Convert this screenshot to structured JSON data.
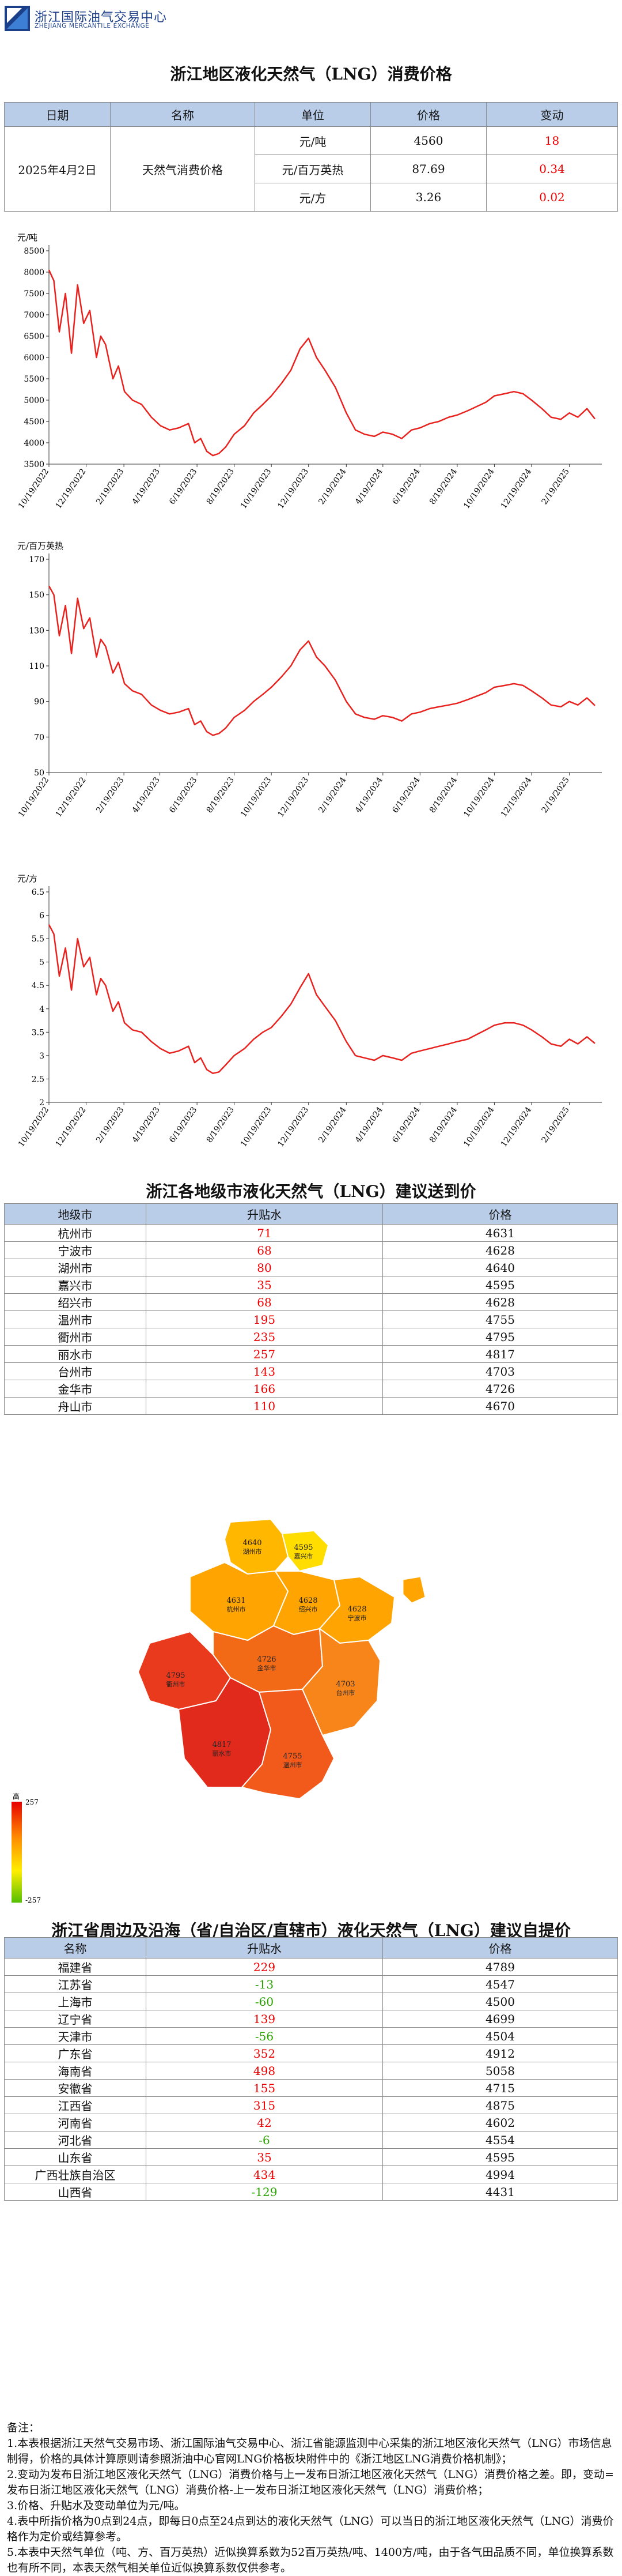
{
  "header": {
    "org_name_cn": "浙江国际油气交易中心",
    "org_name_en": "ZHEJIANG MERCANTILE EXCHANGE"
  },
  "price_section": {
    "title": "浙江地区液化天然气（LNG）消费价格",
    "columns": [
      "日期",
      "名称",
      "单位",
      "价格",
      "变动"
    ],
    "date": "2025年4月2日",
    "name": "天然气消费价格",
    "rows": [
      {
        "unit": "元/吨",
        "price": "4560",
        "change": "18"
      },
      {
        "unit": "元/百万英热",
        "price": "87.69",
        "change": "0.34"
      },
      {
        "unit": "元/方",
        "price": "3.26",
        "change": "0.02"
      }
    ]
  },
  "chart_data": [
    {
      "type": "line",
      "ylabel": "元/吨",
      "ylim": [
        3500,
        8500
      ],
      "yticks": [
        "3500",
        "4000",
        "4500",
        "5000",
        "5500",
        "6000",
        "6500",
        "7000",
        "7500",
        "8000",
        "8500"
      ],
      "x_tick_labels": [
        "10/19/2022",
        "12/19/2022",
        "2/19/2023",
        "4/19/2023",
        "6/19/2023",
        "8/19/2023",
        "10/19/2023",
        "12/19/2023",
        "2/19/2024",
        "4/19/2024",
        "6/19/2024",
        "8/19/2024",
        "10/19/2024",
        "12/19/2024",
        "2/19/2025"
      ],
      "x": [
        "2022-10-19",
        "2022-10-27",
        "2022-11-05",
        "2022-11-15",
        "2022-11-25",
        "2022-12-05",
        "2022-12-15",
        "2022-12-25",
        "2023-01-05",
        "2023-01-12",
        "2023-01-20",
        "2023-02-01",
        "2023-02-10",
        "2023-02-20",
        "2023-03-05",
        "2023-03-20",
        "2023-04-05",
        "2023-04-20",
        "2023-05-05",
        "2023-05-20",
        "2023-06-05",
        "2023-06-15",
        "2023-06-25",
        "2023-07-05",
        "2023-07-15",
        "2023-07-25",
        "2023-08-05",
        "2023-08-19",
        "2023-09-05",
        "2023-09-20",
        "2023-10-05",
        "2023-10-19",
        "2023-11-05",
        "2023-11-20",
        "2023-12-05",
        "2023-12-19",
        "2024-01-01",
        "2024-01-15",
        "2024-02-01",
        "2024-02-19",
        "2024-03-05",
        "2024-03-20",
        "2024-04-05",
        "2024-04-19",
        "2024-05-05",
        "2024-05-20",
        "2024-06-05",
        "2024-06-19",
        "2024-07-05",
        "2024-07-20",
        "2024-08-05",
        "2024-08-19",
        "2024-09-05",
        "2024-09-20",
        "2024-10-05",
        "2024-10-19",
        "2024-11-05",
        "2024-11-20",
        "2024-12-05",
        "2024-12-19",
        "2025-01-05",
        "2025-01-20",
        "2025-02-05",
        "2025-02-19",
        "2025-03-05",
        "2025-03-20",
        "2025-04-02"
      ],
      "values": [
        8050,
        7800,
        6600,
        7500,
        6100,
        7700,
        6800,
        7100,
        6000,
        6500,
        6300,
        5500,
        5800,
        5200,
        5000,
        4900,
        4600,
        4400,
        4300,
        4350,
        4450,
        4000,
        4100,
        3800,
        3700,
        3750,
        3900,
        4200,
        4400,
        4700,
        4900,
        5100,
        5400,
        5700,
        6200,
        6450,
        6000,
        5700,
        5300,
        4700,
        4300,
        4200,
        4150,
        4250,
        4200,
        4100,
        4300,
        4350,
        4450,
        4500,
        4600,
        4650,
        4750,
        4850,
        4950,
        5100,
        5150,
        5200,
        5150,
        5000,
        4800,
        4600,
        4550,
        4700,
        4600,
        4800,
        4560
      ]
    },
    {
      "type": "line",
      "ylabel": "元/百万英热",
      "ylim": [
        50,
        170
      ],
      "yticks": [
        "50",
        "70",
        "90",
        "110",
        "130",
        "150",
        "170"
      ],
      "x_tick_labels": [
        "10/19/2022",
        "12/19/2022",
        "2/19/2023",
        "4/19/2023",
        "6/19/2023",
        "8/19/2023",
        "10/19/2023",
        "12/19/2023",
        "2/19/2024",
        "4/19/2024",
        "6/19/2024",
        "8/19/2024",
        "10/19/2024",
        "12/19/2024",
        "2/19/2025"
      ],
      "x": [
        "2022-10-19",
        "2022-10-27",
        "2022-11-05",
        "2022-11-15",
        "2022-11-25",
        "2022-12-05",
        "2022-12-15",
        "2022-12-25",
        "2023-01-05",
        "2023-01-12",
        "2023-01-20",
        "2023-02-01",
        "2023-02-10",
        "2023-02-20",
        "2023-03-05",
        "2023-03-20",
        "2023-04-05",
        "2023-04-20",
        "2023-05-05",
        "2023-05-20",
        "2023-06-05",
        "2023-06-15",
        "2023-06-25",
        "2023-07-05",
        "2023-07-15",
        "2023-07-25",
        "2023-08-05",
        "2023-08-19",
        "2023-09-05",
        "2023-09-20",
        "2023-10-05",
        "2023-10-19",
        "2023-11-05",
        "2023-11-20",
        "2023-12-05",
        "2023-12-19",
        "2024-01-01",
        "2024-01-15",
        "2024-02-01",
        "2024-02-19",
        "2024-03-05",
        "2024-03-20",
        "2024-04-05",
        "2024-04-19",
        "2024-05-05",
        "2024-05-20",
        "2024-06-05",
        "2024-06-19",
        "2024-07-05",
        "2024-07-20",
        "2024-08-05",
        "2024-08-19",
        "2024-09-05",
        "2024-09-20",
        "2024-10-05",
        "2024-10-19",
        "2024-11-05",
        "2024-11-20",
        "2024-12-05",
        "2024-12-19",
        "2025-01-05",
        "2025-01-20",
        "2025-02-05",
        "2025-02-19",
        "2025-03-05",
        "2025-03-20",
        "2025-04-02"
      ],
      "values": [
        155,
        150,
        127,
        144,
        117,
        148,
        131,
        137,
        115,
        125,
        121,
        106,
        112,
        100,
        96,
        94,
        88,
        85,
        83,
        84,
        86,
        77,
        79,
        73,
        71,
        72,
        75,
        81,
        85,
        90,
        94,
        98,
        104,
        110,
        119,
        124,
        115,
        110,
        102,
        90,
        83,
        81,
        80,
        82,
        81,
        79,
        83,
        84,
        86,
        87,
        88,
        89,
        91,
        93,
        95,
        98,
        99,
        100,
        99,
        96,
        92,
        88,
        87,
        90,
        88,
        92,
        87.69
      ]
    },
    {
      "type": "line",
      "ylabel": "元/方",
      "ylim": [
        2,
        6.5
      ],
      "yticks": [
        "2",
        "2.5",
        "3",
        "3.5",
        "4",
        "4.5",
        "5",
        "5.5",
        "6",
        "6.5"
      ],
      "x_tick_labels": [
        "10/19/2022",
        "12/19/2022",
        "2/19/2023",
        "4/19/2023",
        "6/19/2023",
        "8/19/2023",
        "10/19/2023",
        "12/19/2023",
        "2/19/2024",
        "4/19/2024",
        "6/19/2024",
        "8/19/2024",
        "10/19/2024",
        "12/19/2024",
        "2/19/2025"
      ],
      "x": [
        "2022-10-19",
        "2022-10-27",
        "2022-11-05",
        "2022-11-15",
        "2022-11-25",
        "2022-12-05",
        "2022-12-15",
        "2022-12-25",
        "2023-01-05",
        "2023-01-12",
        "2023-01-20",
        "2023-02-01",
        "2023-02-10",
        "2023-02-20",
        "2023-03-05",
        "2023-03-20",
        "2023-04-05",
        "2023-04-20",
        "2023-05-05",
        "2023-05-20",
        "2023-06-05",
        "2023-06-15",
        "2023-06-25",
        "2023-07-05",
        "2023-07-15",
        "2023-07-25",
        "2023-08-05",
        "2023-08-19",
        "2023-09-05",
        "2023-09-20",
        "2023-10-05",
        "2023-10-19",
        "2023-11-05",
        "2023-11-20",
        "2023-12-05",
        "2023-12-19",
        "2024-01-01",
        "2024-01-15",
        "2024-02-01",
        "2024-02-19",
        "2024-03-05",
        "2024-03-20",
        "2024-04-05",
        "2024-04-19",
        "2024-05-05",
        "2024-05-20",
        "2024-06-05",
        "2024-06-19",
        "2024-07-05",
        "2024-07-20",
        "2024-08-05",
        "2024-08-19",
        "2024-09-05",
        "2024-09-20",
        "2024-10-05",
        "2024-10-19",
        "2024-11-05",
        "2024-11-20",
        "2024-12-05",
        "2024-12-19",
        "2025-01-05",
        "2025-01-20",
        "2025-02-05",
        "2025-02-19",
        "2025-03-05",
        "2025-03-20",
        "2025-04-02"
      ],
      "values": [
        5.8,
        5.6,
        4.7,
        5.3,
        4.4,
        5.5,
        4.9,
        5.1,
        4.3,
        4.65,
        4.5,
        3.95,
        4.15,
        3.7,
        3.55,
        3.5,
        3.3,
        3.15,
        3.05,
        3.1,
        3.2,
        2.85,
        2.95,
        2.7,
        2.62,
        2.65,
        2.8,
        3.0,
        3.15,
        3.35,
        3.5,
        3.6,
        3.85,
        4.1,
        4.45,
        4.75,
        4.3,
        4.05,
        3.75,
        3.3,
        3.0,
        2.95,
        2.9,
        3.0,
        2.95,
        2.9,
        3.05,
        3.1,
        3.15,
        3.2,
        3.25,
        3.3,
        3.35,
        3.45,
        3.55,
        3.65,
        3.7,
        3.7,
        3.65,
        3.55,
        3.4,
        3.25,
        3.2,
        3.35,
        3.25,
        3.4,
        3.26
      ]
    }
  ],
  "city_section": {
    "title": "浙江各地级市液化天然气（LNG）建议送到价",
    "columns": [
      "地级市",
      "升贴水",
      "价格"
    ],
    "rows": [
      {
        "name": "杭州市",
        "premium": "71",
        "price": "4631"
      },
      {
        "name": "宁波市",
        "premium": "68",
        "price": "4628"
      },
      {
        "name": "湖州市",
        "premium": "80",
        "price": "4640"
      },
      {
        "name": "嘉兴市",
        "premium": "35",
        "price": "4595"
      },
      {
        "name": "绍兴市",
        "premium": "68",
        "price": "4628"
      },
      {
        "name": "温州市",
        "premium": "195",
        "price": "4755"
      },
      {
        "name": "衢州市",
        "premium": "235",
        "price": "4795"
      },
      {
        "name": "丽水市",
        "premium": "257",
        "price": "4817"
      },
      {
        "name": "台州市",
        "premium": "143",
        "price": "4703"
      },
      {
        "name": "金华市",
        "premium": "166",
        "price": "4726"
      },
      {
        "name": "舟山市",
        "premium": "110",
        "price": "4670"
      }
    ]
  },
  "map": {
    "regions": [
      {
        "price": "4640",
        "name": "湖州市",
        "color": "#ffb700"
      },
      {
        "price": "4595",
        "name": "嘉兴市",
        "color": "#ffdd00"
      },
      {
        "price": "4631",
        "name": "杭州市",
        "color": "#ffa400"
      },
      {
        "price": "4628",
        "name": "绍兴市",
        "color": "#ffa400"
      },
      {
        "price": "4628",
        "name": "宁波市",
        "color": "#ffa400"
      },
      {
        "price": "4726",
        "name": "金华市",
        "color": "#f36a16"
      },
      {
        "price": "4795",
        "name": "衢州市",
        "color": "#ea3a1d"
      },
      {
        "price": "4703",
        "name": "台州市",
        "color": "#f7851a"
      },
      {
        "price": "4817",
        "name": "丽水市",
        "color": "#e12a1c"
      },
      {
        "price": "4755",
        "name": "温州市",
        "color": "#f15a1b"
      }
    ],
    "legend": {
      "high": "高",
      "low": "低",
      "max": "257",
      "min": "-257"
    },
    "legend_colors": [
      "#e60000",
      "#ff8800",
      "#ffee00",
      "#44bb00"
    ]
  },
  "province_section": {
    "title": "浙江省周边及沿海（省/自治区/直辖市）液化天然气（LNG）建议自提价",
    "columns": [
      "名称",
      "升贴水",
      "价格"
    ],
    "rows": [
      {
        "name": "福建省",
        "premium": "229",
        "price": "4789",
        "sign": "pos"
      },
      {
        "name": "江苏省",
        "premium": "-13",
        "price": "4547",
        "sign": "neg"
      },
      {
        "name": "上海市",
        "premium": "-60",
        "price": "4500",
        "sign": "neg"
      },
      {
        "name": "辽宁省",
        "premium": "139",
        "price": "4699",
        "sign": "pos"
      },
      {
        "name": "天津市",
        "premium": "-56",
        "price": "4504",
        "sign": "neg"
      },
      {
        "name": "广东省",
        "premium": "352",
        "price": "4912",
        "sign": "pos"
      },
      {
        "name": "海南省",
        "premium": "498",
        "price": "5058",
        "sign": "pos"
      },
      {
        "name": "安徽省",
        "premium": "155",
        "price": "4715",
        "sign": "pos"
      },
      {
        "name": "江西省",
        "premium": "315",
        "price": "4875",
        "sign": "pos"
      },
      {
        "name": "河南省",
        "premium": "42",
        "price": "4602",
        "sign": "pos"
      },
      {
        "name": "河北省",
        "premium": "-6",
        "price": "4554",
        "sign": "neg"
      },
      {
        "name": "山东省",
        "premium": "35",
        "price": "4595",
        "sign": "pos"
      },
      {
        "name": "广西壮族自治区",
        "premium": "434",
        "price": "4994",
        "sign": "pos"
      },
      {
        "name": "山西省",
        "premium": "-129",
        "price": "4431",
        "sign": "neg"
      }
    ]
  },
  "notes": {
    "heading": "备注：",
    "items": [
      "1.本表根据浙江天然气交易市场、浙江国际油气交易中心、浙江省能源监测中心采集的浙江地区液化天然气（LNG）市场信息制得，价格的具体计算原则请参照浙油中心官网LNG价格板块附件中的《浙江地区LNG消费价格机制》；",
      "2.变动为发布日浙江地区液化天然气（LNG）消费价格与上一发布日浙江地区液化天然气（LNG）消费价格之差。即，变动=发布日浙江地区液化天然气（LNG）消费价格-上一发布日浙江地区液化天然气（LNG）消费价格；",
      "3.价格、升贴水及变动单位为元/吨。",
      "4.表中所指价格为0点到24点，即每日0点至24点到达的液化天然气（LNG）可以当日的浙江地区液化天然气（LNG）消费价格作为定价或结算参考。",
      "5.本表中天然气单位（吨、方、百万英热）近似换算系数为52百万英热/吨、1400方/吨，由于各气田品质不同，单位换算系数也有所不同，本表天然气相关单位近似换算系数仅供参考。"
    ]
  }
}
